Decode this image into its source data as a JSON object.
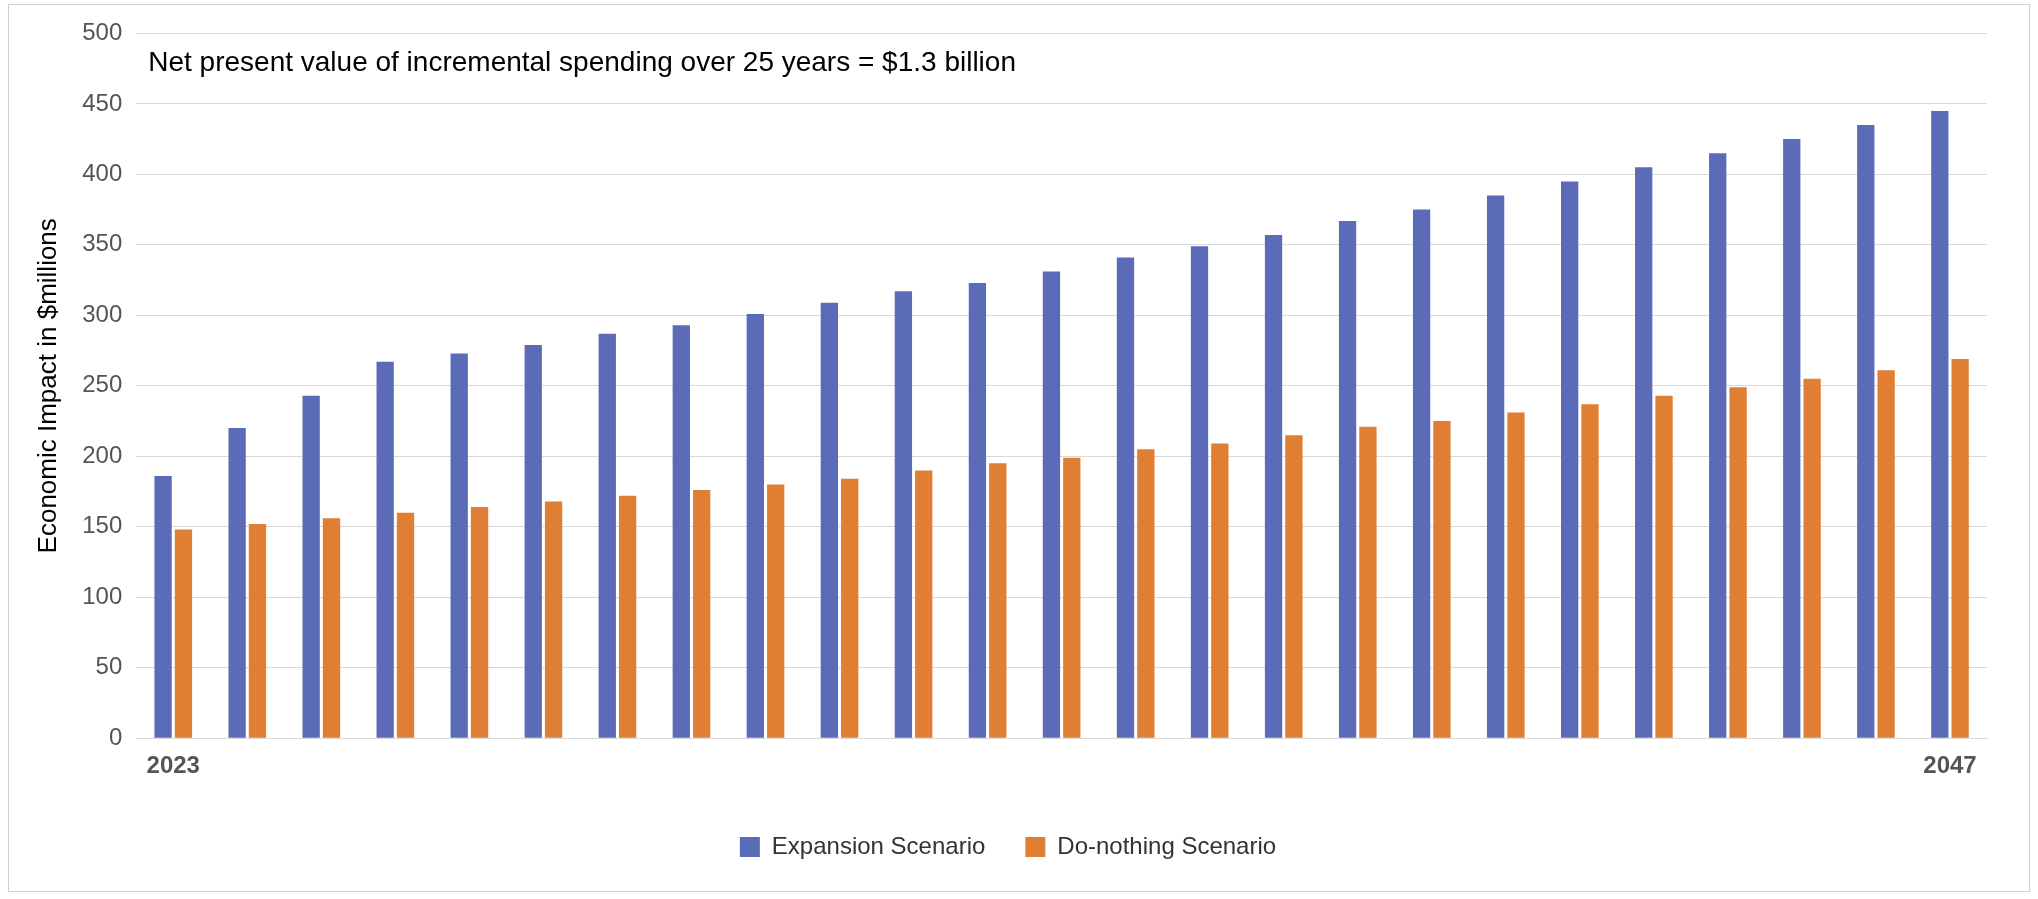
{
  "chart_data": {
    "type": "bar",
    "ylabel": "Economic Impact in $millions",
    "annotations": [
      "Net present value of incremental spending over 25 years = $1.3 billion"
    ],
    "categories": [
      "2023",
      null,
      null,
      null,
      null,
      null,
      null,
      null,
      null,
      null,
      null,
      null,
      null,
      null,
      null,
      null,
      null,
      null,
      null,
      null,
      null,
      null,
      null,
      null,
      "2047"
    ],
    "series": [
      {
        "name": "Expansion Scenario",
        "color": "#5b6bb8",
        "values": [
          186,
          220,
          243,
          267,
          273,
          279,
          287,
          293,
          301,
          309,
          317,
          323,
          331,
          341,
          349,
          357,
          367,
          375,
          385,
          395,
          405,
          415,
          425,
          435,
          445
        ]
      },
      {
        "name": "Do-nothing Scenario",
        "color": "#e07f33",
        "values": [
          148,
          152,
          156,
          160,
          164,
          168,
          172,
          176,
          180,
          184,
          190,
          195,
          199,
          205,
          209,
          215,
          221,
          225,
          231,
          237,
          243,
          249,
          255,
          261,
          269
        ]
      }
    ],
    "ylim": [
      0,
      500
    ],
    "yticks": [
      0,
      50,
      100,
      150,
      200,
      250,
      300,
      350,
      400,
      450,
      500
    ],
    "grid": "y",
    "legend": "bottom"
  }
}
